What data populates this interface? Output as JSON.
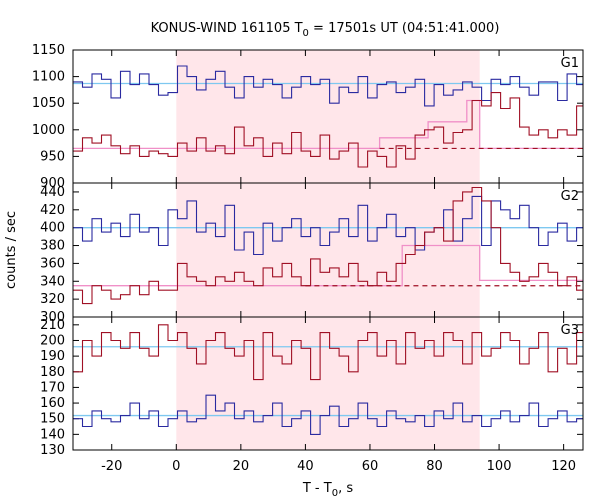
{
  "chart_data": {
    "type": "line",
    "title_prefix": "KONUS-WIND 161105 T",
    "title_sub": "0",
    "title_suffix": " = 17501s UT (04:51:41.000)",
    "xlabel_prefix": "T - T",
    "xlabel_sub": "0",
    "xlabel_suffix": ", s",
    "ylabel": "counts / sec",
    "xlim": [
      -32,
      126
    ],
    "xticks": [
      -20,
      0,
      20,
      40,
      60,
      80,
      100,
      120
    ],
    "highlight_interval": [
      0,
      94
    ],
    "bin_width": 2.944,
    "x_start": -32,
    "colors": {
      "upper_series": "#2a2aa0",
      "lower_series": "#a01025",
      "upper_fit": "#7ec8f0",
      "lower_fit": "#f090c8",
      "highlight": "#ffe6ea",
      "dashed": "#a01025"
    },
    "panels": [
      {
        "label": "G1",
        "ylim": [
          900,
          1150
        ],
        "yticks": [
          900,
          950,
          1000,
          1050,
          1100,
          1150
        ],
        "upper_fit_level": 1087,
        "lower_background_level": 965,
        "lower_fit_steps": [
          [
            -32,
            965
          ],
          [
            63,
            965
          ],
          [
            63,
            985
          ],
          [
            78,
            985
          ],
          [
            78,
            1015
          ],
          [
            90,
            1015
          ],
          [
            90,
            1055
          ],
          [
            94,
            1055
          ],
          [
            94,
            965
          ],
          [
            126,
            965
          ]
        ],
        "dashed_baseline": {
          "x": [
            63,
            126
          ],
          "y": 965
        },
        "upper_values": [
          1090,
          1080,
          1105,
          1095,
          1060,
          1110,
          1085,
          1105,
          1085,
          1065,
          1070,
          1120,
          1100,
          1075,
          1095,
          1110,
          1080,
          1060,
          1100,
          1080,
          1095,
          1085,
          1060,
          1080,
          1100,
          1085,
          1095,
          1050,
          1080,
          1070,
          1100,
          1060,
          1085,
          1090,
          1070,
          1080,
          1095,
          1045,
          1085,
          1065,
          1075,
          1090,
          1080,
          1055,
          1095,
          1085,
          1100,
          1080,
          1065,
          1090,
          1090,
          1055,
          1105,
          1085
        ],
        "lower_values": [
          960,
          985,
          975,
          990,
          970,
          955,
          970,
          950,
          960,
          955,
          950,
          975,
          960,
          985,
          960,
          970,
          955,
          1005,
          970,
          985,
          950,
          975,
          955,
          995,
          960,
          950,
          990,
          945,
          960,
          975,
          930,
          960,
          950,
          930,
          970,
          945,
          990,
          1000,
          1005,
          975,
          995,
          1000,
          1055,
          1045,
          1070,
          1040,
          1060,
          1005,
          990,
          1000,
          985,
          1000,
          990,
          1045
        ]
      },
      {
        "label": "G2",
        "ylim": [
          300,
          450
        ],
        "yticks": [
          300,
          320,
          340,
          360,
          380,
          400,
          420,
          440
        ],
        "upper_fit_level": 400,
        "lower_background_level": 335,
        "lower_fit_steps": [
          [
            -32,
            335
          ],
          [
            70,
            335
          ],
          [
            70,
            380
          ],
          [
            94,
            380
          ],
          [
            94,
            341
          ],
          [
            126,
            341
          ]
        ],
        "dashed_baseline": {
          "x": [
            40,
            126
          ],
          "y": 335
        },
        "upper_values": [
          400,
          385,
          410,
          395,
          405,
          390,
          415,
          395,
          400,
          380,
          420,
          410,
          430,
          395,
          405,
          390,
          425,
          375,
          395,
          370,
          405,
          385,
          400,
          410,
          390,
          400,
          380,
          395,
          410,
          390,
          425,
          385,
          400,
          415,
          390,
          400,
          375,
          395,
          400,
          420,
          385,
          410,
          435,
          380,
          430,
          420,
          410,
          425,
          400,
          380,
          395,
          405,
          385,
          400
        ],
        "lower_values": [
          330,
          315,
          335,
          330,
          320,
          325,
          335,
          325,
          340,
          330,
          330,
          360,
          345,
          340,
          335,
          345,
          340,
          350,
          340,
          335,
          355,
          345,
          360,
          345,
          335,
          365,
          350,
          355,
          345,
          360,
          340,
          335,
          350,
          340,
          360,
          370,
          380,
          395,
          400,
          385,
          430,
          440,
          445,
          430,
          400,
          360,
          350,
          340,
          345,
          360,
          350,
          335,
          345,
          330
        ]
      },
      {
        "label": "G3",
        "ylim": [
          130,
          215
        ],
        "yticks": [
          130,
          140,
          150,
          160,
          170,
          180,
          190,
          200,
          210
        ],
        "upper_fit_level": 196,
        "lower_fit_level": 152,
        "upper_values": [
          180,
          200,
          190,
          205,
          200,
          195,
          205,
          195,
          190,
          210,
          200,
          205,
          195,
          185,
          200,
          205,
          195,
          190,
          200,
          175,
          205,
          190,
          185,
          200,
          195,
          175,
          205,
          195,
          190,
          180,
          200,
          205,
          190,
          200,
          185,
          205,
          195,
          200,
          190,
          205,
          200,
          185,
          205,
          190,
          195,
          205,
          200,
          185,
          195,
          205,
          180,
          195,
          185,
          205
        ],
        "lower_values": [
          150,
          145,
          155,
          150,
          148,
          152,
          160,
          150,
          155,
          145,
          150,
          155,
          148,
          150,
          165,
          155,
          160,
          150,
          155,
          148,
          152,
          160,
          145,
          150,
          155,
          140,
          152,
          158,
          145,
          150,
          160,
          150,
          145,
          155,
          150,
          148,
          152,
          145,
          155,
          150,
          160,
          148,
          152,
          145,
          150,
          155,
          148,
          152,
          160,
          145,
          150,
          155,
          148,
          150
        ]
      }
    ]
  }
}
